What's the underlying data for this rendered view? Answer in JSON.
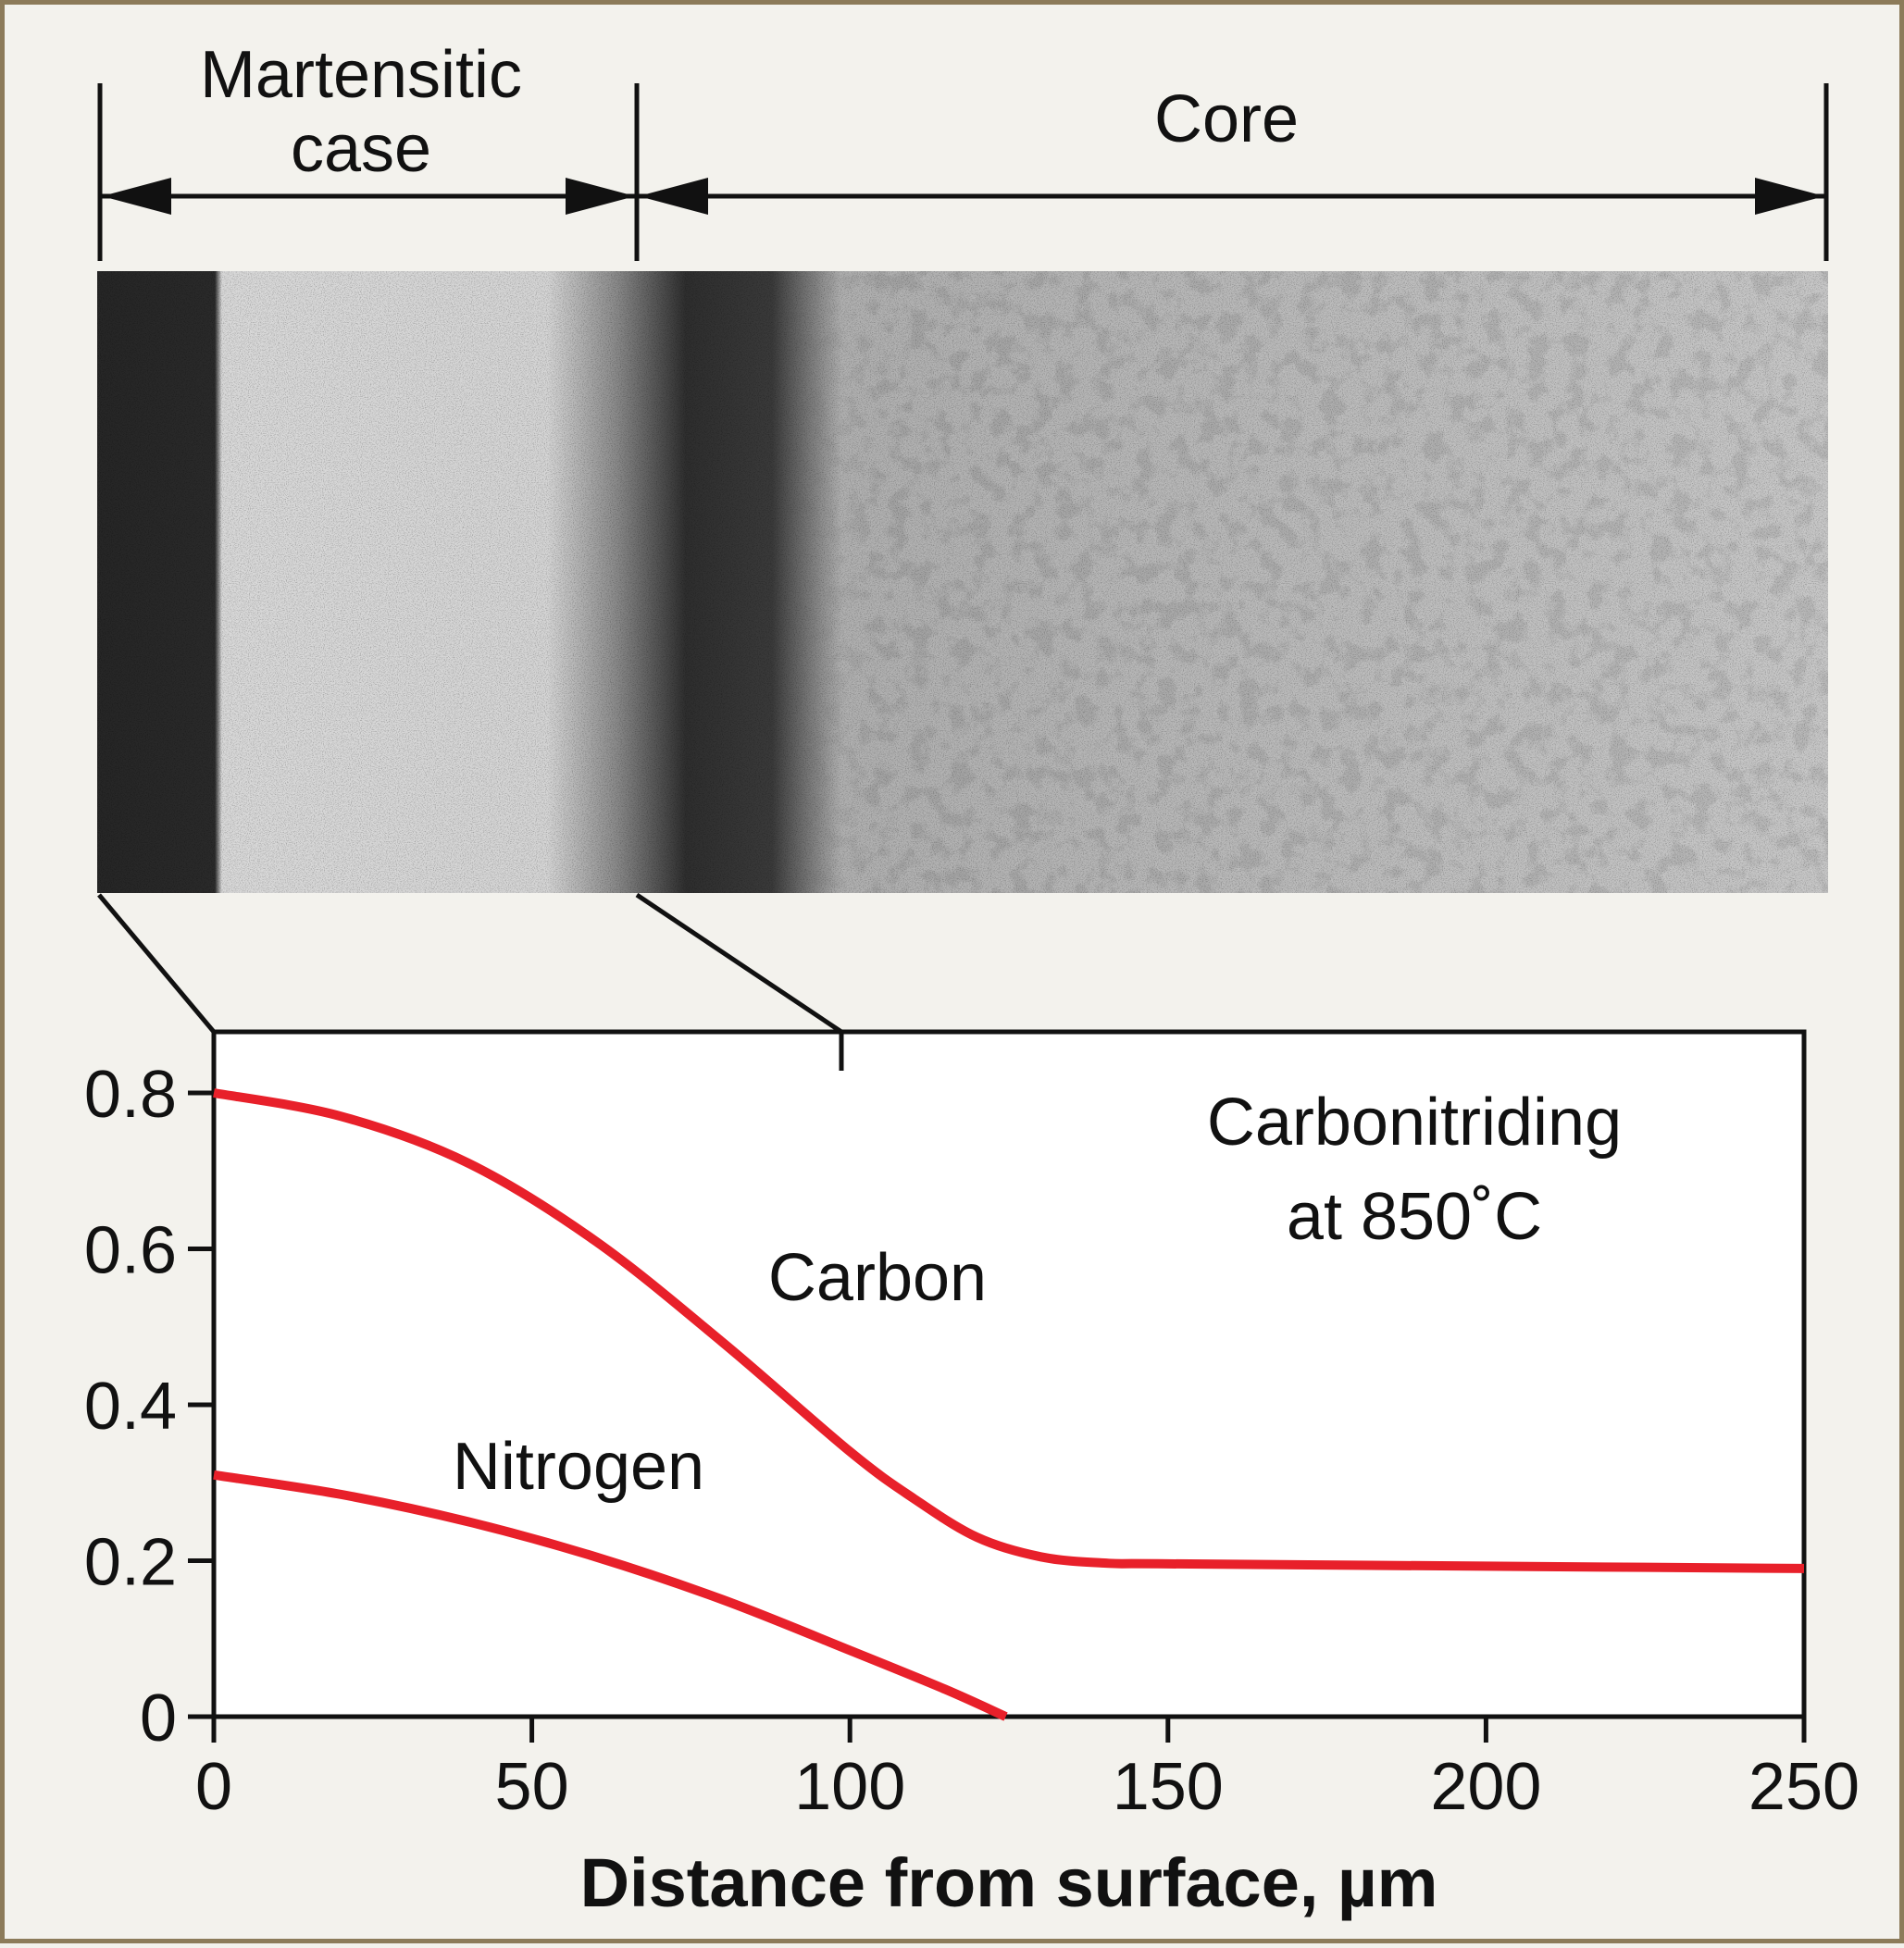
{
  "header": {
    "case_label_line1": "Martensitic",
    "case_label_line2": "case",
    "core_label": "Core"
  },
  "micrograph": {
    "icon": "microstructure-photo"
  },
  "chart_data": {
    "type": "line",
    "annotation_line1": "Carbonitriding",
    "annotation_line2": "at 850˚C",
    "xlabel": "Distance from surface, µm",
    "ylabel": "",
    "xlim": [
      0,
      250
    ],
    "ylim": [
      0,
      0.8
    ],
    "x_ticks": [
      0,
      50,
      100,
      150,
      200,
      250
    ],
    "y_ticks": [
      0,
      0.2,
      0.4,
      0.6,
      0.8
    ],
    "y_tick_labels": [
      "0",
      "0.2",
      "0.4",
      "0.6",
      "0.8"
    ],
    "grid": false,
    "line_color": "#e8202a",
    "series": [
      {
        "name": "Carbon",
        "x": [
          0,
          20,
          40,
          60,
          80,
          100,
          110,
          120,
          130,
          140,
          150,
          200,
          250
        ],
        "y": [
          0.8,
          0.77,
          0.71,
          0.61,
          0.48,
          0.34,
          0.28,
          0.23,
          0.205,
          0.197,
          0.196,
          0.193,
          0.19
        ]
      },
      {
        "name": "Nitrogen",
        "x": [
          0,
          20,
          40,
          60,
          80,
          100,
          115,
          124.5
        ],
        "y": [
          0.31,
          0.285,
          0.25,
          0.205,
          0.15,
          0.085,
          0.035,
          0.0
        ]
      }
    ]
  }
}
